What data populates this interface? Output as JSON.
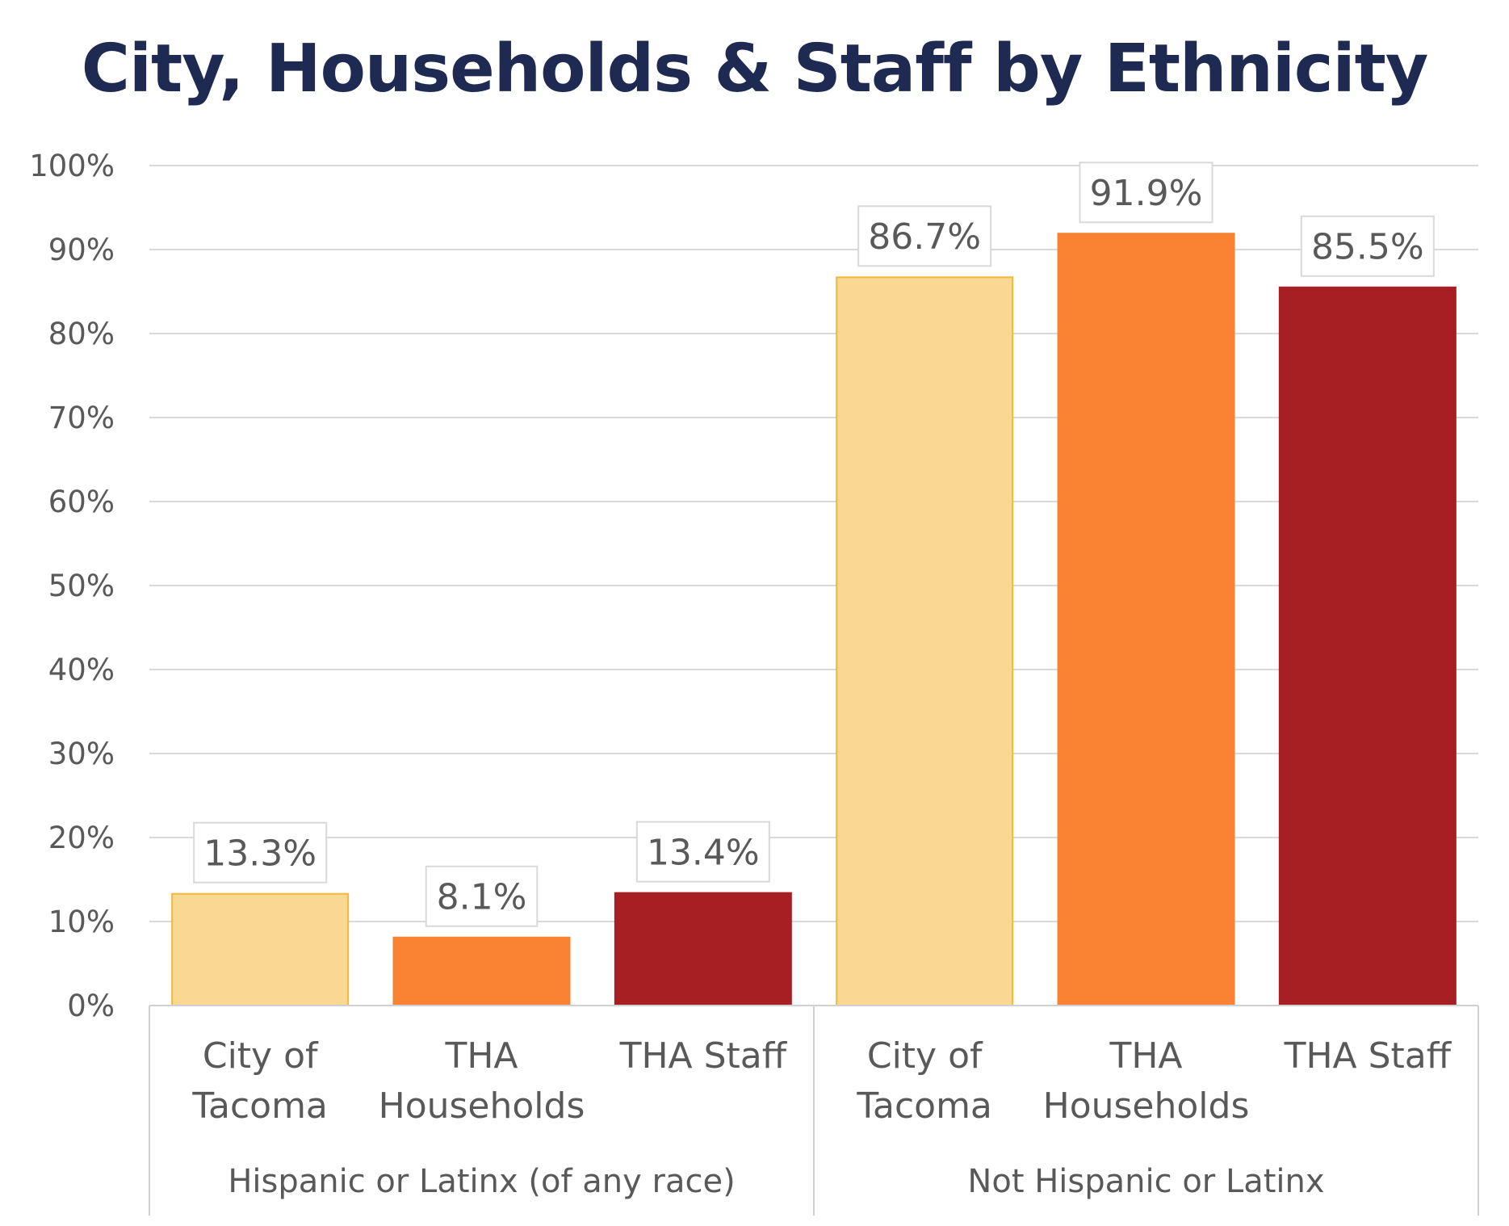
{
  "chart_data": {
    "type": "bar",
    "title": "City, Households & Staff by Ethnicity",
    "xlabel": "",
    "ylabel": "",
    "ylim": [
      0,
      100
    ],
    "yticks": [
      "0%",
      "10%",
      "20%",
      "30%",
      "40%",
      "50%",
      "60%",
      "70%",
      "80%",
      "90%",
      "100%"
    ],
    "grid": true,
    "legend": "none",
    "groups": [
      {
        "label": "Hispanic or Latinx (of any race)",
        "bars": [
          {
            "category": "City of Tacoma",
            "lines": [
              "City of",
              "Tacoma"
            ],
            "value": 13.3,
            "label": "13.3%"
          },
          {
            "category": "THA Households",
            "lines": [
              "THA",
              "Households"
            ],
            "value": 8.1,
            "label": "8.1%"
          },
          {
            "category": "THA Staff",
            "lines": [
              "THA Staff"
            ],
            "value": 13.4,
            "label": "13.4%"
          }
        ]
      },
      {
        "label": "Not Hispanic or Latinx",
        "bars": [
          {
            "category": "City of Tacoma",
            "lines": [
              "City of",
              "Tacoma"
            ],
            "value": 86.7,
            "label": "86.7%"
          },
          {
            "category": "THA Households",
            "lines": [
              "THA",
              "Households"
            ],
            "value": 91.9,
            "label": "91.9%"
          },
          {
            "category": "THA Staff",
            "lines": [
              "THA Staff"
            ],
            "value": 85.5,
            "label": "85.5%"
          }
        ]
      }
    ],
    "colors": {
      "City of Tacoma": {
        "fill": "#f9d891",
        "stroke": "#f0b93a"
      },
      "THA Households": {
        "fill": "#f98333",
        "stroke": "#f98333"
      },
      "THA Staff": {
        "fill": "#a71e23",
        "stroke": "#a71e23"
      },
      "title": "#1f2a52",
      "text": "#595959",
      "grid": "#d9d9d9",
      "axis": "#d0d0d0"
    }
  }
}
